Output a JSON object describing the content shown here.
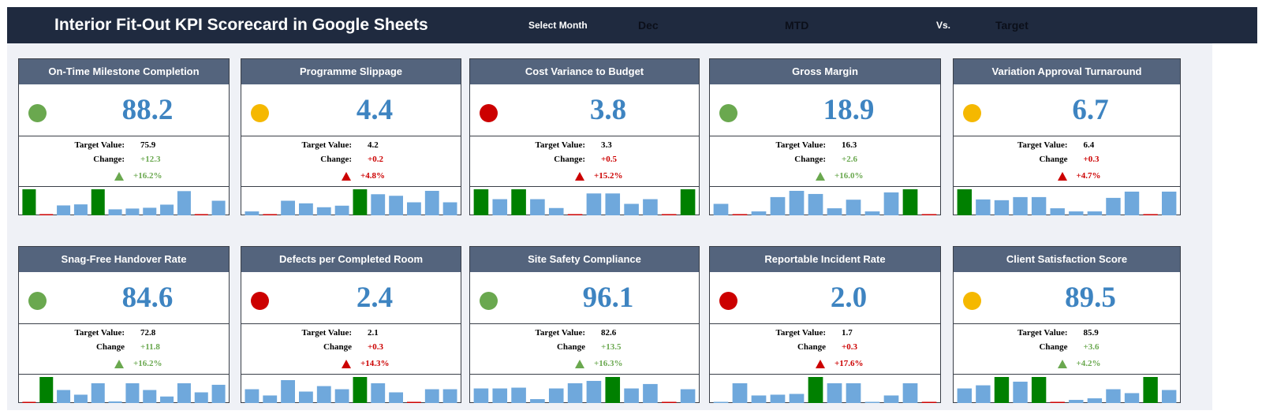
{
  "header": {
    "title": "Interior Fit-Out KPI Scorecard in Google Sheets",
    "select_month_label": "Select Month",
    "month": "Dec",
    "period": "MTD",
    "vs_label": "Vs.",
    "comparison": "Target"
  },
  "colors": {
    "green": "#6aa84f",
    "amber": "#f5b800",
    "red": "#cc0000",
    "bar": "#6fa8dc",
    "bar_high": "#008000",
    "bar_low": "#cc0000"
  },
  "labels": {
    "target": "Target Value:",
    "change_colon": "Change:",
    "change": "Change"
  },
  "cards": [
    {
      "title": "On-Time Milestone Completion",
      "value": "88.2",
      "status": "green",
      "target": "75.9",
      "change_label": "Change:",
      "change": "+12.3",
      "change_color": "green",
      "pct": "+16.2%",
      "pct_color": "green",
      "bars": [
        10,
        0.3,
        3.8,
        4.2,
        10,
        2.3,
        2.6,
        2.9,
        4.1,
        9.3,
        0.3,
        5.6
      ]
    },
    {
      "title": "Programme Slippage",
      "value": "4.4",
      "status": "amber",
      "target": "4.2",
      "change_label": "Change:",
      "change": "+0.2",
      "change_color": "red",
      "pct": "+4.8%",
      "pct_color": "red",
      "bars": [
        1.5,
        0.3,
        5.6,
        4.6,
        3.1,
        3.7,
        10,
        8.1,
        7.5,
        5.0,
        9.4,
        5.0
      ]
    },
    {
      "title": "Cost Variance to Budget",
      "value": "3.8",
      "status": "red",
      "target": "3.3",
      "change_label": "Change:",
      "change": "+0.5",
      "change_color": "red",
      "pct": "+15.2%",
      "pct_color": "red",
      "bars": [
        10,
        6.2,
        10,
        6.2,
        2.8,
        0.3,
        8.4,
        8.4,
        4.4,
        6.2,
        0.3,
        10
      ]
    },
    {
      "title": "Gross Margin",
      "value": "18.9",
      "status": "green",
      "target": "16.3",
      "change_label": "Change:",
      "change": "+2.6",
      "change_color": "green",
      "pct": "+16.0%",
      "pct_color": "green",
      "bars": [
        4.4,
        0.3,
        1.5,
        7.0,
        9.4,
        8.2,
        2.7,
        6.0,
        1.5,
        8.8,
        10,
        0.3
      ]
    },
    {
      "title": "Variation Approval Turnaround",
      "value": "6.7",
      "status": "amber",
      "target": "6.4",
      "change_label": "Change",
      "change": "+0.3",
      "change_color": "red",
      "pct": "+4.7%",
      "pct_color": "red",
      "bars": [
        10,
        6.1,
        5.8,
        7.0,
        7.0,
        2.7,
        1.5,
        1.5,
        6.7,
        9.1,
        0.3,
        9.1
      ]
    },
    {
      "title": "Snag-Free Handover Rate",
      "value": "84.6",
      "status": "green",
      "target": "72.8",
      "change_label": "Change",
      "change": "+11.8",
      "change_color": "green",
      "pct": "+16.2%",
      "pct_color": "green",
      "bars": [
        0.3,
        10,
        5.0,
        3.2,
        7.6,
        0.6,
        7.6,
        5.0,
        2.5,
        7.6,
        4.1,
        7.0
      ]
    },
    {
      "title": "Defects per Completed Room",
      "value": "2.4",
      "status": "red",
      "target": "2.1",
      "change_label": "Change",
      "change": "+0.3",
      "change_color": "red",
      "pct": "+14.3%",
      "pct_color": "red",
      "bars": [
        5.3,
        2.9,
        8.8,
        4.4,
        6.5,
        5.3,
        10,
        7.6,
        4.1,
        0.3,
        5.3,
        5.3
      ]
    },
    {
      "title": "Site Safety Compliance",
      "value": "96.1",
      "status": "green",
      "target": "82.6",
      "change_label": "Change",
      "change": "+13.5",
      "change_color": "green",
      "pct": "+16.3%",
      "pct_color": "green",
      "bars": [
        5.6,
        5.6,
        5.9,
        1.5,
        5.6,
        7.6,
        8.5,
        10,
        5.6,
        7.3,
        0.3,
        5.3
      ]
    },
    {
      "title": "Reportable Incident Rate",
      "value": "2.0",
      "status": "red",
      "target": "1.7",
      "change_label": "Change",
      "change": "+0.3",
      "change_color": "red",
      "pct": "+17.6%",
      "pct_color": "red",
      "bars": [
        0.3,
        7.6,
        2.9,
        3.2,
        3.5,
        10,
        7.6,
        7.6,
        0.3,
        2.9,
        7.6,
        0
      ]
    },
    {
      "title": "Client Satisfaction Score",
      "value": "89.5",
      "status": "amber",
      "target": "85.9",
      "change_label": "Change",
      "change": "+3.6",
      "change_color": "green",
      "pct": "+4.2%",
      "pct_color": "green",
      "bars": [
        5.6,
        6.8,
        10,
        8.2,
        10,
        0.3,
        1.2,
        1.8,
        5.3,
        3.8,
        10,
        5.0
      ]
    }
  ]
}
